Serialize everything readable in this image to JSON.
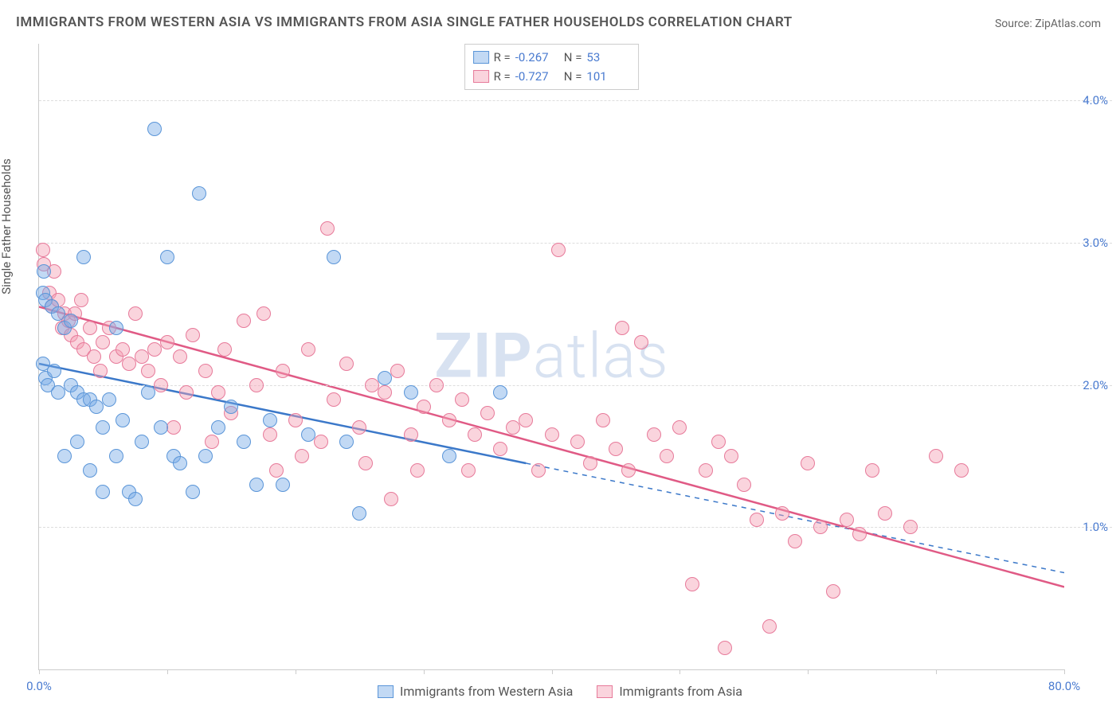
{
  "title": "IMMIGRANTS FROM WESTERN ASIA VS IMMIGRANTS FROM ASIA SINGLE FATHER HOUSEHOLDS CORRELATION CHART",
  "source_label": "Source:",
  "source_value": "ZipAtlas.com",
  "y_axis_label": "Single Father Households",
  "watermark_part1": "ZIP",
  "watermark_part2": "atlas",
  "watermark_color": "rgba(125,160,210,0.30)",
  "plot": {
    "background": "#ffffff",
    "axis_color": "#cccccc",
    "grid_color": "#dddddd",
    "tick_label_color": "#4a7bd0",
    "xlim": [
      0,
      80
    ],
    "ylim": [
      0,
      4.4
    ],
    "y_ticks": [
      {
        "v": 1.0,
        "label": "1.0%"
      },
      {
        "v": 2.0,
        "label": "2.0%"
      },
      {
        "v": 3.0,
        "label": "3.0%"
      },
      {
        "v": 4.0,
        "label": "4.0%"
      }
    ],
    "x_ticks_major": [
      0,
      10,
      20,
      30,
      40,
      50,
      60,
      70,
      80
    ],
    "x_tick_labels": [
      {
        "v": 0,
        "label": "0.0%"
      },
      {
        "v": 80,
        "label": "80.0%"
      }
    ]
  },
  "series": [
    {
      "id": "western_asia",
      "label": "Immigrants from Western Asia",
      "marker_fill": "rgba(120,170,230,0.45)",
      "marker_stroke": "#5a95d8",
      "line_color": "#3b78c9",
      "R": "-0.267",
      "N": "53",
      "trend": {
        "x1": 0,
        "y1": 2.15,
        "x2_solid": 38,
        "y2_solid": 1.45,
        "x2_dash": 80,
        "y2_dash": 0.68
      },
      "points": [
        [
          0.3,
          2.65
        ],
        [
          0.3,
          2.15
        ],
        [
          0.4,
          2.8
        ],
        [
          0.5,
          2.6
        ],
        [
          0.5,
          2.05
        ],
        [
          0.7,
          2.0
        ],
        [
          1.0,
          2.55
        ],
        [
          1.2,
          2.1
        ],
        [
          1.5,
          2.5
        ],
        [
          1.5,
          1.95
        ],
        [
          2.0,
          2.4
        ],
        [
          2.0,
          1.5
        ],
        [
          2.5,
          2.45
        ],
        [
          2.5,
          2.0
        ],
        [
          3.0,
          1.95
        ],
        [
          3.0,
          1.6
        ],
        [
          3.5,
          2.9
        ],
        [
          3.5,
          1.9
        ],
        [
          4.0,
          1.9
        ],
        [
          4.0,
          1.4
        ],
        [
          4.5,
          1.85
        ],
        [
          5.0,
          1.7
        ],
        [
          5.0,
          1.25
        ],
        [
          5.5,
          1.9
        ],
        [
          6.0,
          2.4
        ],
        [
          6.0,
          1.5
        ],
        [
          6.5,
          1.75
        ],
        [
          7.0,
          1.25
        ],
        [
          7.5,
          1.2
        ],
        [
          8.0,
          1.6
        ],
        [
          8.5,
          1.95
        ],
        [
          9.0,
          3.8
        ],
        [
          9.5,
          1.7
        ],
        [
          10.0,
          2.9
        ],
        [
          10.5,
          1.5
        ],
        [
          11.0,
          1.45
        ],
        [
          12.0,
          1.25
        ],
        [
          12.5,
          3.35
        ],
        [
          13.0,
          1.5
        ],
        [
          14.0,
          1.7
        ],
        [
          15.0,
          1.85
        ],
        [
          16.0,
          1.6
        ],
        [
          17.0,
          1.3
        ],
        [
          18.0,
          1.75
        ],
        [
          19.0,
          1.3
        ],
        [
          21.0,
          1.65
        ],
        [
          23.0,
          2.9
        ],
        [
          24.0,
          1.6
        ],
        [
          25.0,
          1.1
        ],
        [
          27.0,
          2.05
        ],
        [
          29.0,
          1.95
        ],
        [
          32.0,
          1.5
        ],
        [
          36.0,
          1.95
        ]
      ]
    },
    {
      "id": "asia",
      "label": "Immigrants from Asia",
      "marker_fill": "rgba(245,160,180,0.45)",
      "marker_stroke": "#e77a9a",
      "line_color": "#e05a85",
      "R": "-0.727",
      "N": "101",
      "trend": {
        "x1": 0,
        "y1": 2.55,
        "x2_solid": 80,
        "y2_solid": 0.58,
        "x2_dash": 80,
        "y2_dash": 0.58
      },
      "points": [
        [
          0.3,
          2.95
        ],
        [
          0.4,
          2.85
        ],
        [
          0.8,
          2.65
        ],
        [
          1.0,
          2.55
        ],
        [
          1.2,
          2.8
        ],
        [
          1.5,
          2.6
        ],
        [
          1.8,
          2.4
        ],
        [
          2.0,
          2.5
        ],
        [
          2.3,
          2.45
        ],
        [
          2.5,
          2.35
        ],
        [
          2.8,
          2.5
        ],
        [
          3.0,
          2.3
        ],
        [
          3.3,
          2.6
        ],
        [
          3.5,
          2.25
        ],
        [
          4.0,
          2.4
        ],
        [
          4.3,
          2.2
        ],
        [
          4.8,
          2.1
        ],
        [
          5.0,
          2.3
        ],
        [
          5.5,
          2.4
        ],
        [
          6.0,
          2.2
        ],
        [
          6.5,
          2.25
        ],
        [
          7.0,
          2.15
        ],
        [
          7.5,
          2.5
        ],
        [
          8.0,
          2.2
        ],
        [
          8.5,
          2.1
        ],
        [
          9.0,
          2.25
        ],
        [
          9.5,
          2.0
        ],
        [
          10.0,
          2.3
        ],
        [
          10.5,
          1.7
        ],
        [
          11.0,
          2.2
        ],
        [
          11.5,
          1.95
        ],
        [
          12.0,
          2.35
        ],
        [
          13.0,
          2.1
        ],
        [
          13.5,
          1.6
        ],
        [
          14.0,
          1.95
        ],
        [
          14.5,
          2.25
        ],
        [
          15.0,
          1.8
        ],
        [
          16.0,
          2.45
        ],
        [
          17.0,
          2.0
        ],
        [
          17.5,
          2.5
        ],
        [
          18.0,
          1.65
        ],
        [
          18.5,
          1.4
        ],
        [
          19.0,
          2.1
        ],
        [
          20.0,
          1.75
        ],
        [
          20.5,
          1.5
        ],
        [
          21.0,
          2.25
        ],
        [
          22.0,
          1.6
        ],
        [
          22.5,
          3.1
        ],
        [
          23.0,
          1.9
        ],
        [
          24.0,
          2.15
        ],
        [
          25.0,
          1.7
        ],
        [
          25.5,
          1.45
        ],
        [
          26.0,
          2.0
        ],
        [
          27.0,
          1.95
        ],
        [
          27.5,
          1.2
        ],
        [
          28.0,
          2.1
        ],
        [
          29.0,
          1.65
        ],
        [
          29.5,
          1.4
        ],
        [
          30.0,
          1.85
        ],
        [
          31.0,
          2.0
        ],
        [
          32.0,
          1.75
        ],
        [
          33.0,
          1.9
        ],
        [
          33.5,
          1.4
        ],
        [
          34.0,
          1.65
        ],
        [
          35.0,
          1.8
        ],
        [
          36.0,
          1.55
        ],
        [
          37.0,
          1.7
        ],
        [
          38.0,
          1.75
        ],
        [
          39.0,
          1.4
        ],
        [
          40.0,
          1.65
        ],
        [
          40.5,
          2.95
        ],
        [
          42.0,
          1.6
        ],
        [
          43.0,
          1.45
        ],
        [
          44.0,
          1.75
        ],
        [
          45.0,
          1.55
        ],
        [
          45.5,
          2.4
        ],
        [
          46.0,
          1.4
        ],
        [
          47.0,
          2.3
        ],
        [
          48.0,
          1.65
        ],
        [
          49.0,
          1.5
        ],
        [
          50.0,
          1.7
        ],
        [
          51.0,
          0.6
        ],
        [
          52.0,
          1.4
        ],
        [
          53.0,
          1.6
        ],
        [
          54.0,
          1.5
        ],
        [
          55.0,
          1.3
        ],
        [
          56.0,
          1.05
        ],
        [
          57.0,
          0.3
        ],
        [
          58.0,
          1.1
        ],
        [
          59.0,
          0.9
        ],
        [
          60.0,
          1.45
        ],
        [
          61.0,
          1.0
        ],
        [
          62.0,
          0.55
        ],
        [
          63.0,
          1.05
        ],
        [
          64.0,
          0.95
        ],
        [
          65.0,
          1.4
        ],
        [
          66.0,
          1.1
        ],
        [
          68.0,
          1.0
        ],
        [
          70.0,
          1.5
        ],
        [
          72.0,
          1.4
        ],
        [
          53.5,
          0.15
        ]
      ]
    }
  ],
  "legend_top": {
    "R_label": "R =",
    "N_label": "N ="
  },
  "marker_radius": 9
}
